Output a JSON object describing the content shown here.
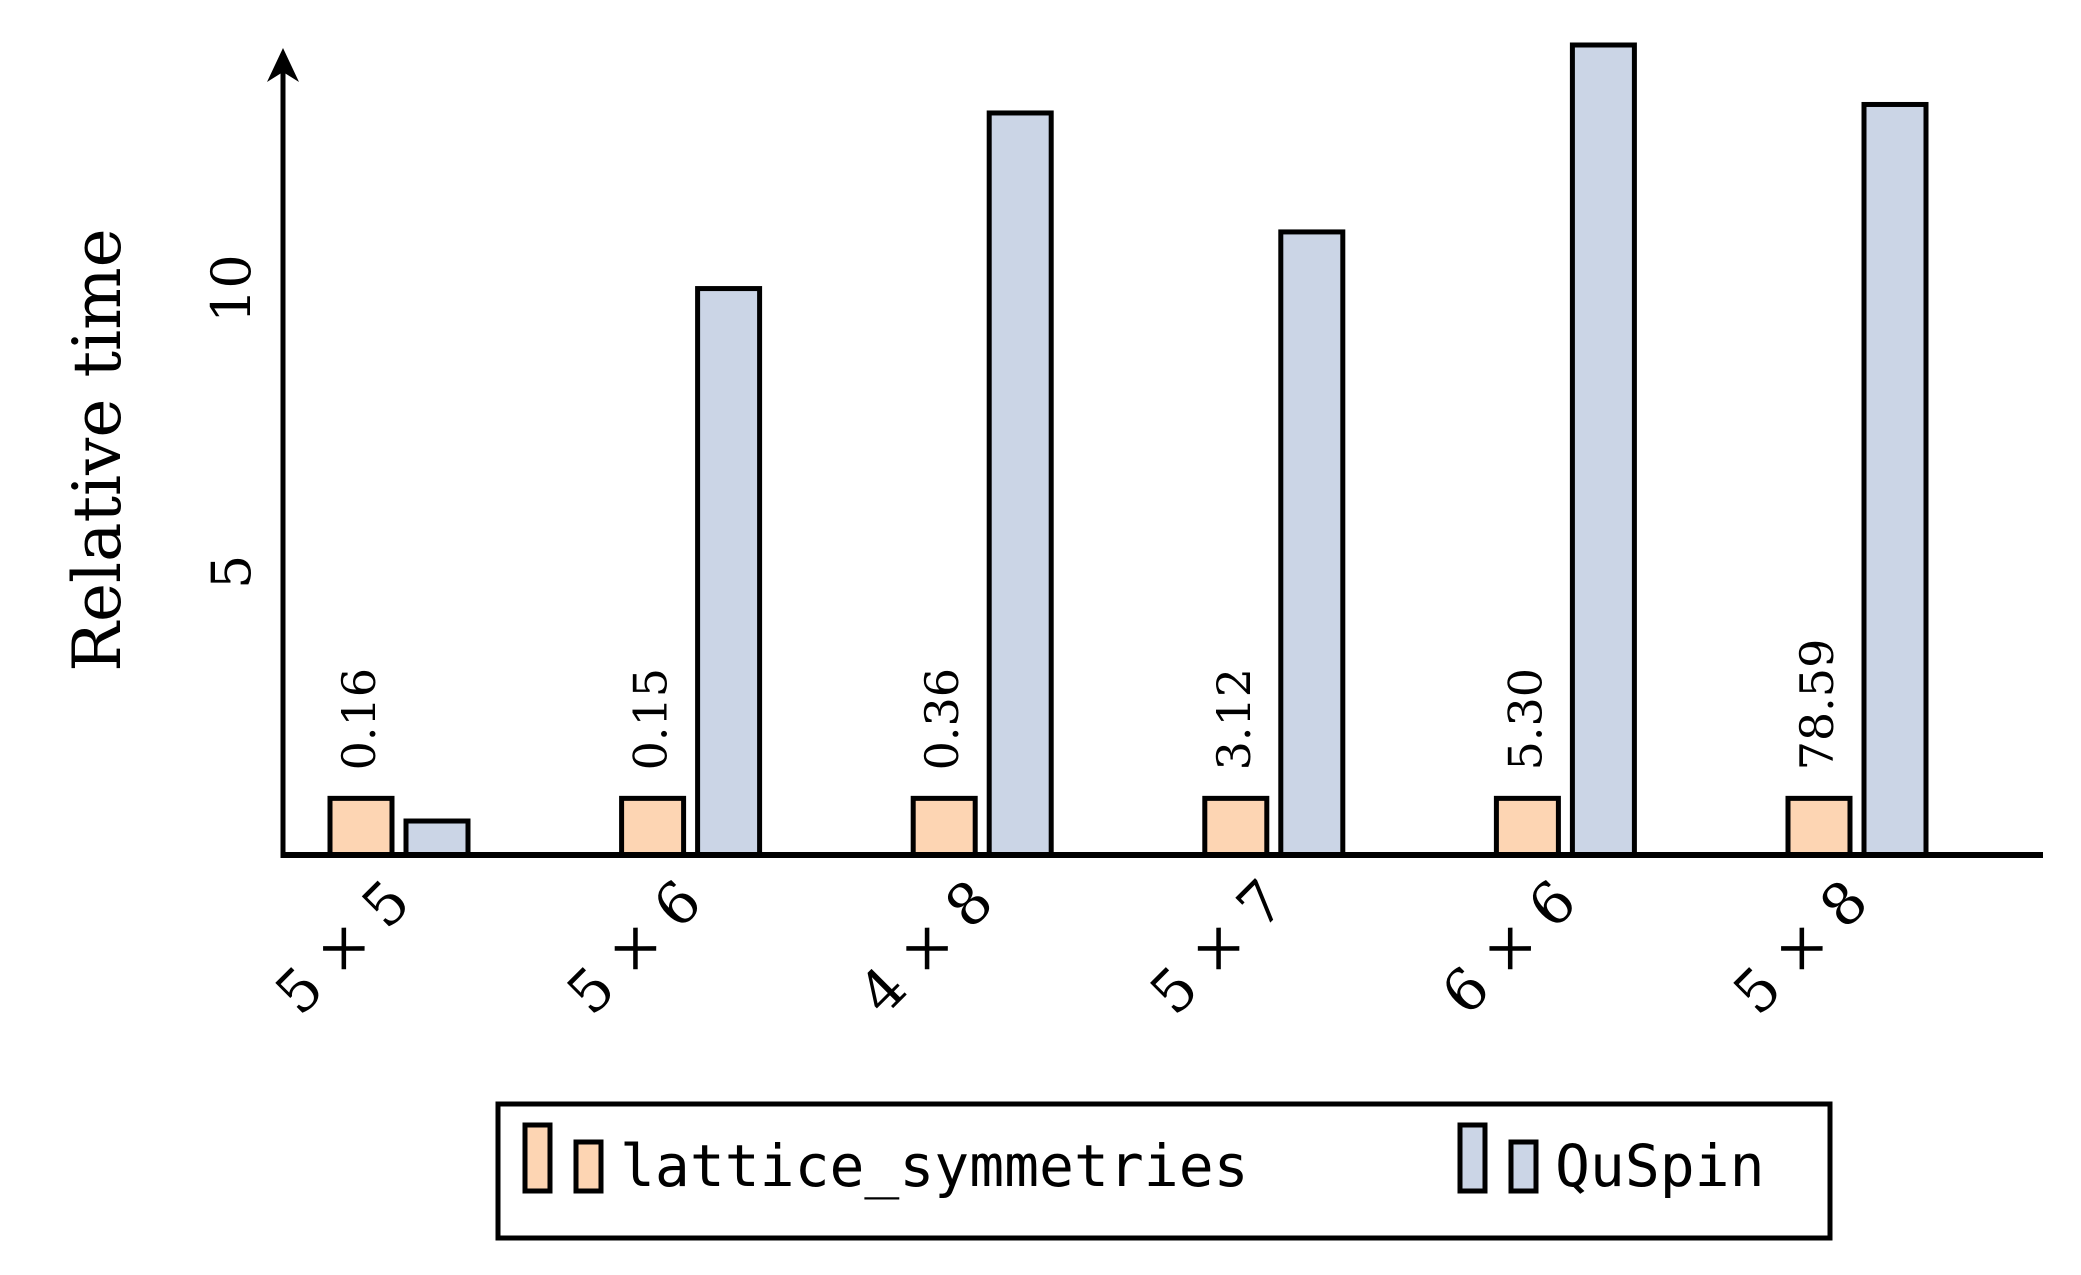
{
  "chart_data": {
    "type": "bar",
    "ylabel": "Relative time",
    "xlabel": "",
    "categories": [
      "5 × 5",
      "5 × 6",
      "4 × 8",
      "5 × 7",
      "6 × 6",
      "5 × 8"
    ],
    "yticks": [
      5,
      10
    ],
    "ylim": [
      0,
      14.3
    ],
    "series": [
      {
        "name": "lattice_symmetries",
        "color": "#fdd5b3",
        "values": [
          1,
          1,
          1,
          1,
          1,
          1
        ],
        "annotations": [
          "0.16",
          "0.15",
          "0.36",
          "3.12",
          "5.30",
          "78.59"
        ]
      },
      {
        "name": "QuSpin",
        "color": "#cbd5e6",
        "values": [
          0.6,
          10.0,
          13.1,
          11.0,
          14.3,
          13.25
        ]
      }
    ],
    "legend_position": "bottom-center",
    "grid": false
  }
}
